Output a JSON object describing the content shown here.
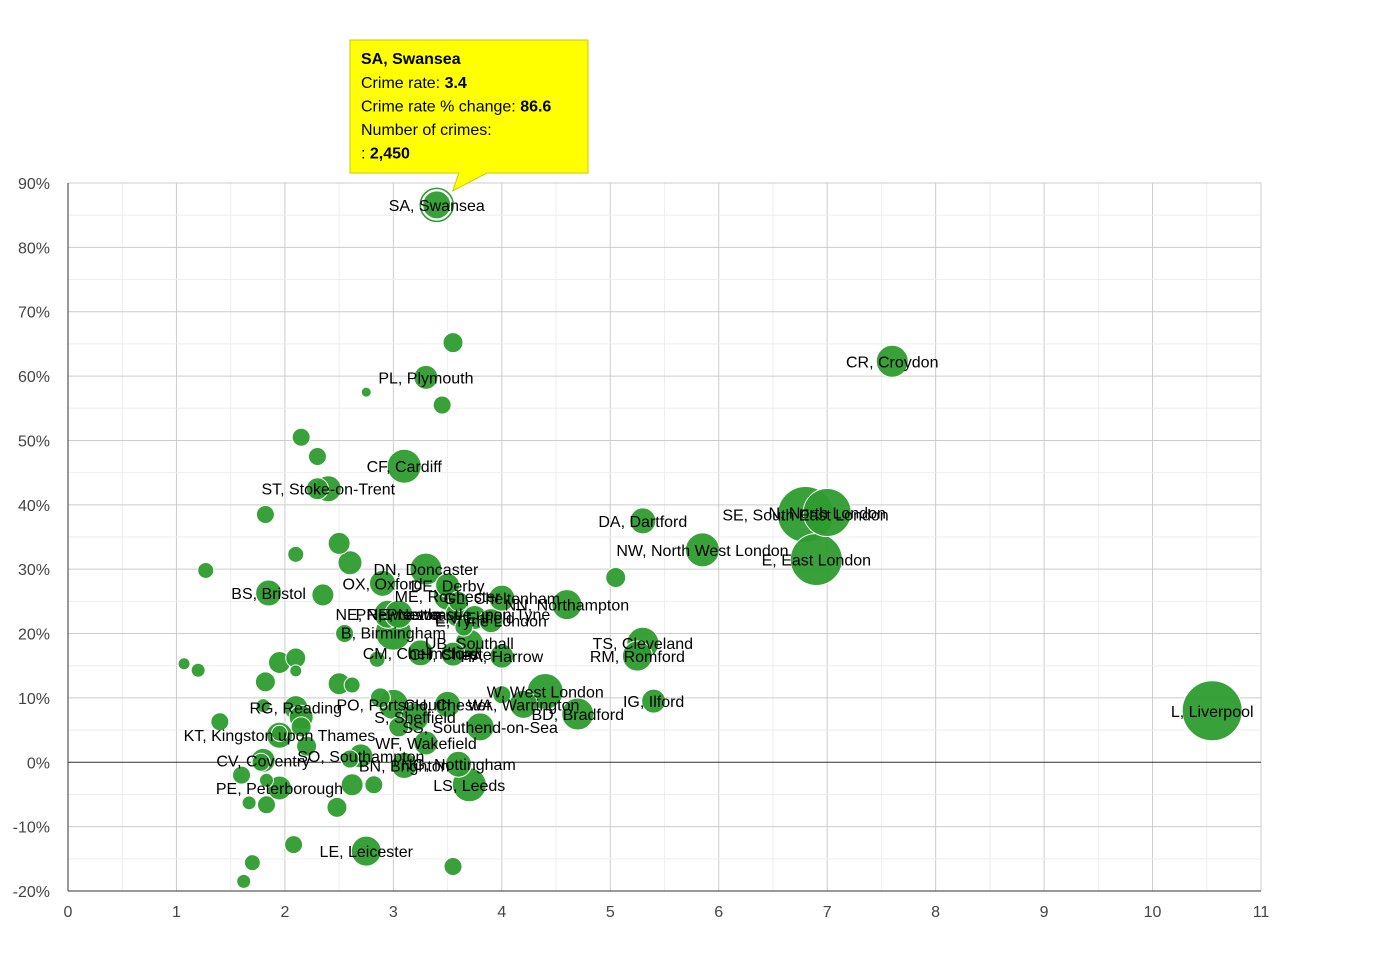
{
  "chart_data": {
    "type": "bubble",
    "title": "",
    "xlabel": "",
    "ylabel": "",
    "xlim": [
      0,
      11
    ],
    "ylim": [
      -20,
      90
    ],
    "x_ticks": [
      "0",
      "1",
      "2",
      "3",
      "4",
      "5",
      "6",
      "7",
      "8",
      "9",
      "10",
      "11"
    ],
    "y_ticks": [
      "-20%",
      "-10%",
      "0%",
      "10%",
      "20%",
      "30%",
      "40%",
      "50%",
      "60%",
      "70%",
      "80%",
      "90%"
    ],
    "colors": {
      "bubble": "#2e9c2e",
      "bubble_stroke": "#ffffff",
      "grid": "#d9d9d9",
      "zero_line": "#333333",
      "tooltip_bg": "#ffff00",
      "tooltip_border": "#c8c800"
    },
    "tooltip": {
      "title": "SA, Swansea",
      "rows": [
        {
          "label": "Crime rate: ",
          "value": "3.4"
        },
        {
          "label": "Crime rate % change: ",
          "value": "86.6"
        },
        {
          "label": "Number of crimes:",
          "value": ""
        },
        {
          "label": ": ",
          "value": "2,450"
        }
      ]
    },
    "points": [
      {
        "label": "SA, Swansea",
        "x": 3.4,
        "y": 86.6,
        "r": 14,
        "selected": true
      },
      {
        "label": "CR, Croydon",
        "x": 7.6,
        "y": 62.3,
        "r": 16
      },
      {
        "label": "L, Liverpool",
        "x": 10.55,
        "y": 8.0,
        "r": 30
      },
      {
        "label": "PL, Plymouth",
        "x": 3.3,
        "y": 59.8,
        "r": 12
      },
      {
        "label": "CF, Cardiff",
        "x": 3.1,
        "y": 46.0,
        "r": 17
      },
      {
        "label": "ST, Stoke-on-Trent",
        "x": 2.4,
        "y": 42.5,
        "r": 13
      },
      {
        "label": "DA, Dartford",
        "x": 5.3,
        "y": 37.5,
        "r": 13
      },
      {
        "label": "SE, South East London",
        "x": 6.8,
        "y": 38.5,
        "r": 28
      },
      {
        "label": "N, North London",
        "x": 7.0,
        "y": 38.8,
        "r": 24
      },
      {
        "label": "NW, North West London",
        "x": 5.85,
        "y": 33.0,
        "r": 17
      },
      {
        "label": "E, East London",
        "x": 6.9,
        "y": 31.5,
        "r": 26
      },
      {
        "label": "DN, Doncaster",
        "x": 3.3,
        "y": 30.0,
        "r": 16
      },
      {
        "label": "OX, Oxford",
        "x": 2.9,
        "y": 27.8,
        "r": 13
      },
      {
        "label": "DE, Derby",
        "x": 3.5,
        "y": 27.5,
        "r": 12
      },
      {
        "label": "BS, Bristol",
        "x": 1.85,
        "y": 26.3,
        "r": 13
      },
      {
        "label": "ME, Rochester",
        "x": 3.5,
        "y": 25.8,
        "r": 14
      },
      {
        "label": "GL, Cheltenham",
        "x": 4.0,
        "y": 25.5,
        "r": 13
      },
      {
        "label": "NN, Northampton",
        "x": 4.6,
        "y": 24.5,
        "r": 15
      },
      {
        "label": "NE, Newcastle",
        "x": 2.95,
        "y": 23.0,
        "r": 14
      },
      {
        "label": "PR, Preston",
        "x": 3.05,
        "y": 23.0,
        "r": 14
      },
      {
        "label": "NE, Newcastle upon Tyne",
        "x": 3.6,
        "y": 23.0,
        "r": 13
      },
      {
        "label": "EN, Enfield",
        "x": 3.75,
        "y": 22.5,
        "r": 12
      },
      {
        "label": "E, Tyne London",
        "x": 3.9,
        "y": 22.0,
        "r": 12
      },
      {
        "label": "B, Birmingham",
        "x": 3.0,
        "y": 20.2,
        "r": 18
      },
      {
        "label": "CM, Chelmsford",
        "x": 3.25,
        "y": 17.0,
        "r": 13
      },
      {
        "label": "UB, Southall",
        "x": 3.7,
        "y": 18.5,
        "r": 14
      },
      {
        "label": "CH, Chester",
        "x": 3.55,
        "y": 16.8,
        "r": 12
      },
      {
        "label": "HA, Harrow",
        "x": 4.0,
        "y": 16.5,
        "r": 12
      },
      {
        "label": "TS, Cleveland",
        "x": 5.3,
        "y": 18.5,
        "r": 16
      },
      {
        "label": "RM, Romford",
        "x": 5.25,
        "y": 16.5,
        "r": 15
      },
      {
        "label": "W, West London",
        "x": 4.4,
        "y": 11.0,
        "r": 18
      },
      {
        "label": "IG, Ilford",
        "x": 5.4,
        "y": 9.5,
        "r": 12
      },
      {
        "label": "RG, Reading",
        "x": 2.1,
        "y": 8.5,
        "r": 12
      },
      {
        "label": "PO, Portsmouth",
        "x": 3.0,
        "y": 9.0,
        "r": 15
      },
      {
        "label": "CH, Chester",
        "x": 3.5,
        "y": 9.0,
        "r": 13
      },
      {
        "label": "WA, Warrington",
        "x": 4.2,
        "y": 9.0,
        "r": 14
      },
      {
        "label": "BD, Bradford",
        "x": 4.7,
        "y": 7.5,
        "r": 16
      },
      {
        "label": "S, Sheffield",
        "x": 3.2,
        "y": 7.0,
        "r": 14
      },
      {
        "label": "SS, Southend-on-Sea",
        "x": 3.8,
        "y": 5.5,
        "r": 14
      },
      {
        "label": "KT, Kingston upon Thames",
        "x": 1.95,
        "y": 4.2,
        "r": 13
      },
      {
        "label": "WF, Wakefield",
        "x": 3.3,
        "y": 3.0,
        "r": 12
      },
      {
        "label": "SO, Southampton",
        "x": 2.7,
        "y": 1.0,
        "r": 12
      },
      {
        "label": "CV, Coventry",
        "x": 1.8,
        "y": 0.3,
        "r": 12
      },
      {
        "label": "BN, Brighton",
        "x": 3.1,
        "y": -0.5,
        "r": 13
      },
      {
        "label": "NG, Nottingham",
        "x": 3.6,
        "y": -0.3,
        "r": 13
      },
      {
        "label": "PE, Peterborough",
        "x": 1.95,
        "y": -4.0,
        "r": 12
      },
      {
        "label": "LS, Leeds",
        "x": 3.7,
        "y": -3.5,
        "r": 17
      },
      {
        "label": "LE, Leicester",
        "x": 2.75,
        "y": -13.8,
        "r": 15
      },
      {
        "label": "",
        "x": 3.55,
        "y": 65.2,
        "r": 10
      },
      {
        "label": "",
        "x": 2.75,
        "y": 57.5,
        "r": 5
      },
      {
        "label": "",
        "x": 3.45,
        "y": 55.5,
        "r": 9
      },
      {
        "label": "",
        "x": 2.15,
        "y": 50.5,
        "r": 9
      },
      {
        "label": "",
        "x": 2.3,
        "y": 47.5,
        "r": 9
      },
      {
        "label": "",
        "x": 2.3,
        "y": 42.5,
        "r": 11
      },
      {
        "label": "",
        "x": 1.82,
        "y": 38.5,
        "r": 9
      },
      {
        "label": "",
        "x": 2.5,
        "y": 34.0,
        "r": 11
      },
      {
        "label": "",
        "x": 2.1,
        "y": 32.3,
        "r": 8
      },
      {
        "label": "",
        "x": 2.6,
        "y": 31.0,
        "r": 12
      },
      {
        "label": "",
        "x": 5.05,
        "y": 28.7,
        "r": 10
      },
      {
        "label": "",
        "x": 1.27,
        "y": 29.8,
        "r": 8
      },
      {
        "label": "",
        "x": 2.35,
        "y": 26.0,
        "r": 11
      },
      {
        "label": "",
        "x": 3.6,
        "y": 25.0,
        "r": 10
      },
      {
        "label": "",
        "x": 2.55,
        "y": 20.0,
        "r": 9
      },
      {
        "label": "",
        "x": 3.65,
        "y": 21.0,
        "r": 9
      },
      {
        "label": "",
        "x": 2.1,
        "y": 16.2,
        "r": 10
      },
      {
        "label": "",
        "x": 1.95,
        "y": 15.5,
        "r": 11
      },
      {
        "label": "",
        "x": 2.85,
        "y": 16.0,
        "r": 8
      },
      {
        "label": "",
        "x": 1.07,
        "y": 15.3,
        "r": 6
      },
      {
        "label": "",
        "x": 1.2,
        "y": 14.3,
        "r": 7
      },
      {
        "label": "",
        "x": 2.1,
        "y": 14.2,
        "r": 6
      },
      {
        "label": "",
        "x": 1.82,
        "y": 12.5,
        "r": 10
      },
      {
        "label": "",
        "x": 2.5,
        "y": 12.2,
        "r": 11
      },
      {
        "label": "",
        "x": 2.62,
        "y": 12.0,
        "r": 8
      },
      {
        "label": "",
        "x": 2.88,
        "y": 10.0,
        "r": 10
      },
      {
        "label": "",
        "x": 4.0,
        "y": 10.5,
        "r": 9
      },
      {
        "label": "",
        "x": 1.8,
        "y": 8.8,
        "r": 7
      },
      {
        "label": "",
        "x": 1.4,
        "y": 6.3,
        "r": 9
      },
      {
        "label": "",
        "x": 2.15,
        "y": 7.0,
        "r": 12
      },
      {
        "label": "",
        "x": 2.15,
        "y": 5.5,
        "r": 10
      },
      {
        "label": "",
        "x": 3.05,
        "y": 5.5,
        "r": 10
      },
      {
        "label": "",
        "x": 1.95,
        "y": 4.5,
        "r": 8
      },
      {
        "label": "",
        "x": 2.2,
        "y": 2.5,
        "r": 10
      },
      {
        "label": "",
        "x": 2.6,
        "y": 0.5,
        "r": 9
      },
      {
        "label": "",
        "x": 1.78,
        "y": 0.0,
        "r": 9
      },
      {
        "label": "",
        "x": 1.6,
        "y": -2.0,
        "r": 9
      },
      {
        "label": "",
        "x": 1.83,
        "y": -2.8,
        "r": 7
      },
      {
        "label": "",
        "x": 2.62,
        "y": -3.5,
        "r": 11
      },
      {
        "label": "",
        "x": 2.82,
        "y": -3.5,
        "r": 9
      },
      {
        "label": "",
        "x": 1.67,
        "y": -6.3,
        "r": 7
      },
      {
        "label": "",
        "x": 1.83,
        "y": -6.6,
        "r": 9
      },
      {
        "label": "",
        "x": 2.48,
        "y": -7.0,
        "r": 10
      },
      {
        "label": "",
        "x": 2.08,
        "y": -12.8,
        "r": 9
      },
      {
        "label": "",
        "x": 1.7,
        "y": -15.6,
        "r": 8
      },
      {
        "label": "",
        "x": 3.55,
        "y": -16.2,
        "r": 9
      },
      {
        "label": "",
        "x": 1.62,
        "y": -18.5,
        "r": 7
      }
    ]
  }
}
